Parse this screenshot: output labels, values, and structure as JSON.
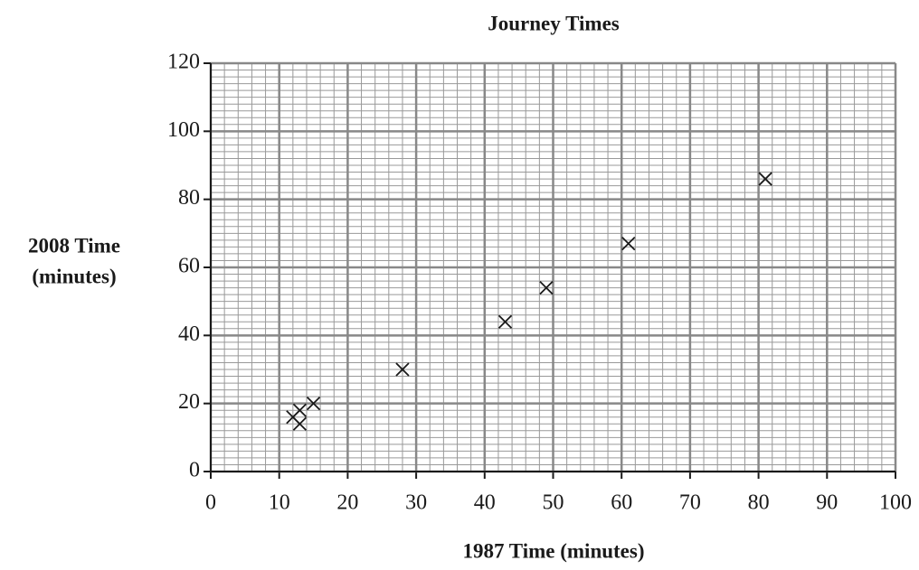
{
  "chart_data": {
    "type": "scatter",
    "title": "Journey Times",
    "xlabel": "1987 Time (minutes)",
    "ylabel": [
      "2008 Time",
      "(minutes)"
    ],
    "series": [
      {
        "name": null,
        "color": "#1a1a1a",
        "x": [
          12,
          13,
          13,
          15,
          28,
          43,
          49,
          61,
          81
        ],
        "values": [
          16,
          18,
          14,
          20,
          30,
          44,
          54,
          67,
          86
        ]
      }
    ],
    "xlim": [
      0,
      100
    ],
    "xticks": [
      0,
      10,
      20,
      30,
      40,
      50,
      60,
      70,
      80,
      90,
      100
    ],
    "ylim": [
      0,
      120
    ],
    "yticks": [
      0,
      20,
      40,
      60,
      80,
      100,
      120
    ],
    "grid": true
  }
}
